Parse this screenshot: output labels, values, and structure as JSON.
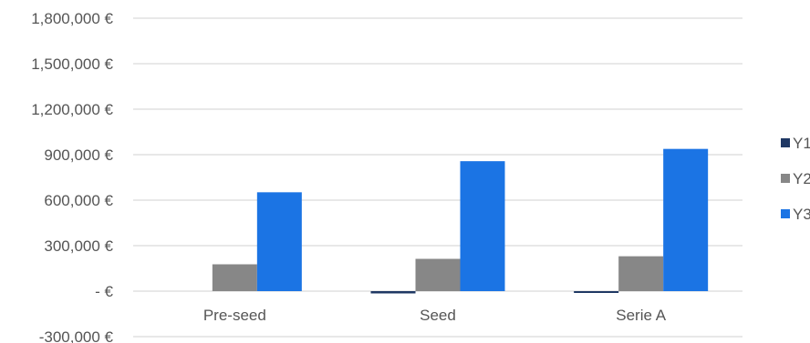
{
  "chart_data": {
    "type": "bar",
    "categories": [
      "Pre-seed",
      "Seed",
      "Serie A"
    ],
    "series": [
      {
        "name": "Y1",
        "color": "#1f3864",
        "values": [
          0,
          -15000,
          -10000
        ]
      },
      {
        "name": "Y2",
        "color": "#878787",
        "values": [
          177000,
          213000,
          230000
        ]
      },
      {
        "name": "Y3",
        "color": "#1b74e4",
        "values": [
          652000,
          857000,
          938000
        ]
      }
    ],
    "ylim": [
      -300000,
      1800000
    ],
    "yticks": [
      -300000,
      0,
      300000,
      600000,
      900000,
      1200000,
      1500000,
      1800000
    ],
    "ytick_labels": [
      "-300,000 €",
      "-  €",
      "300,000 €",
      "600,000 €",
      "900,000 €",
      "1,200,000 €",
      "1,500,000 €",
      "1,800,000 €"
    ],
    "grid": true,
    "legend_position": "right",
    "title": "",
    "xlabel": "",
    "ylabel": ""
  }
}
